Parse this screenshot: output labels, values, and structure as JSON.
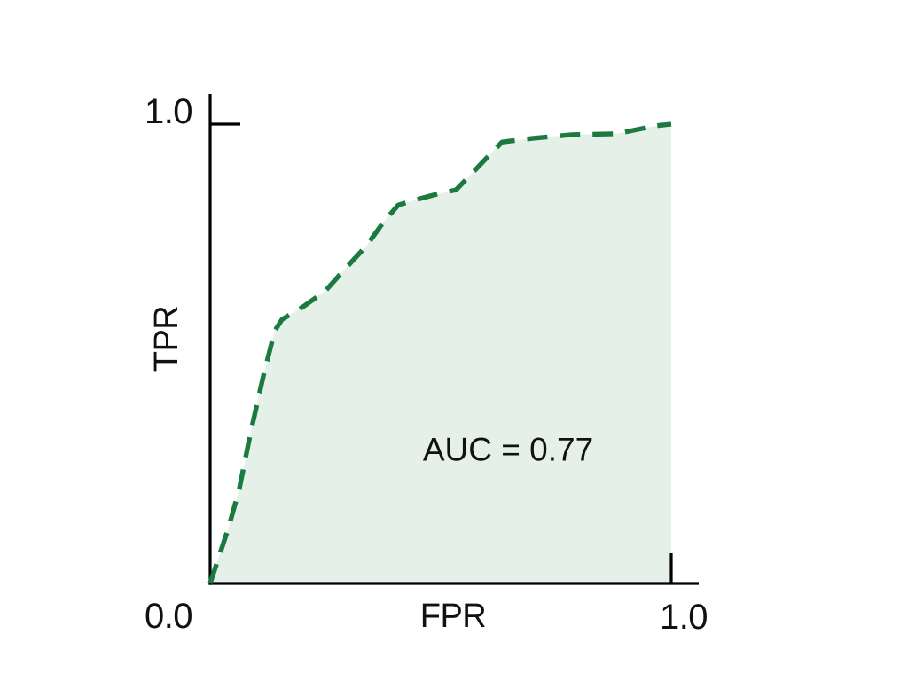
{
  "page": {
    "background_color": "#ffffff"
  },
  "chart_data": {
    "type": "line",
    "subtype": "roc-curve",
    "title": "",
    "xlabel": "FPR",
    "ylabel": "TPR",
    "xlim": [
      0,
      1
    ],
    "ylim": [
      0,
      1
    ],
    "grid": false,
    "x_tick_labels": [
      "0.0",
      "1.0"
    ],
    "y_tick_labels": [
      "1.0"
    ],
    "annotation": "AUC = 0.77",
    "auc_value": 0.77,
    "line_style": "dashed",
    "line_color": "#1a7a40",
    "fill_color": "#e4f0e8",
    "axis_color": "#000000",
    "text_color": "#111111",
    "points": [
      [
        0.0,
        0.0
      ],
      [
        0.04,
        0.122
      ],
      [
        0.063,
        0.205
      ],
      [
        0.088,
        0.33
      ],
      [
        0.115,
        0.45
      ],
      [
        0.14,
        0.55
      ],
      [
        0.156,
        0.575
      ],
      [
        0.204,
        0.604
      ],
      [
        0.25,
        0.637
      ],
      [
        0.298,
        0.691
      ],
      [
        0.338,
        0.734
      ],
      [
        0.377,
        0.788
      ],
      [
        0.408,
        0.824
      ],
      [
        0.456,
        0.838
      ],
      [
        0.494,
        0.848
      ],
      [
        0.533,
        0.857
      ],
      [
        0.571,
        0.896
      ],
      [
        0.604,
        0.931
      ],
      [
        0.633,
        0.961
      ],
      [
        0.698,
        0.969
      ],
      [
        0.785,
        0.977
      ],
      [
        0.881,
        0.979
      ],
      [
        0.963,
        0.996
      ],
      [
        1.0,
        1.0
      ]
    ]
  }
}
